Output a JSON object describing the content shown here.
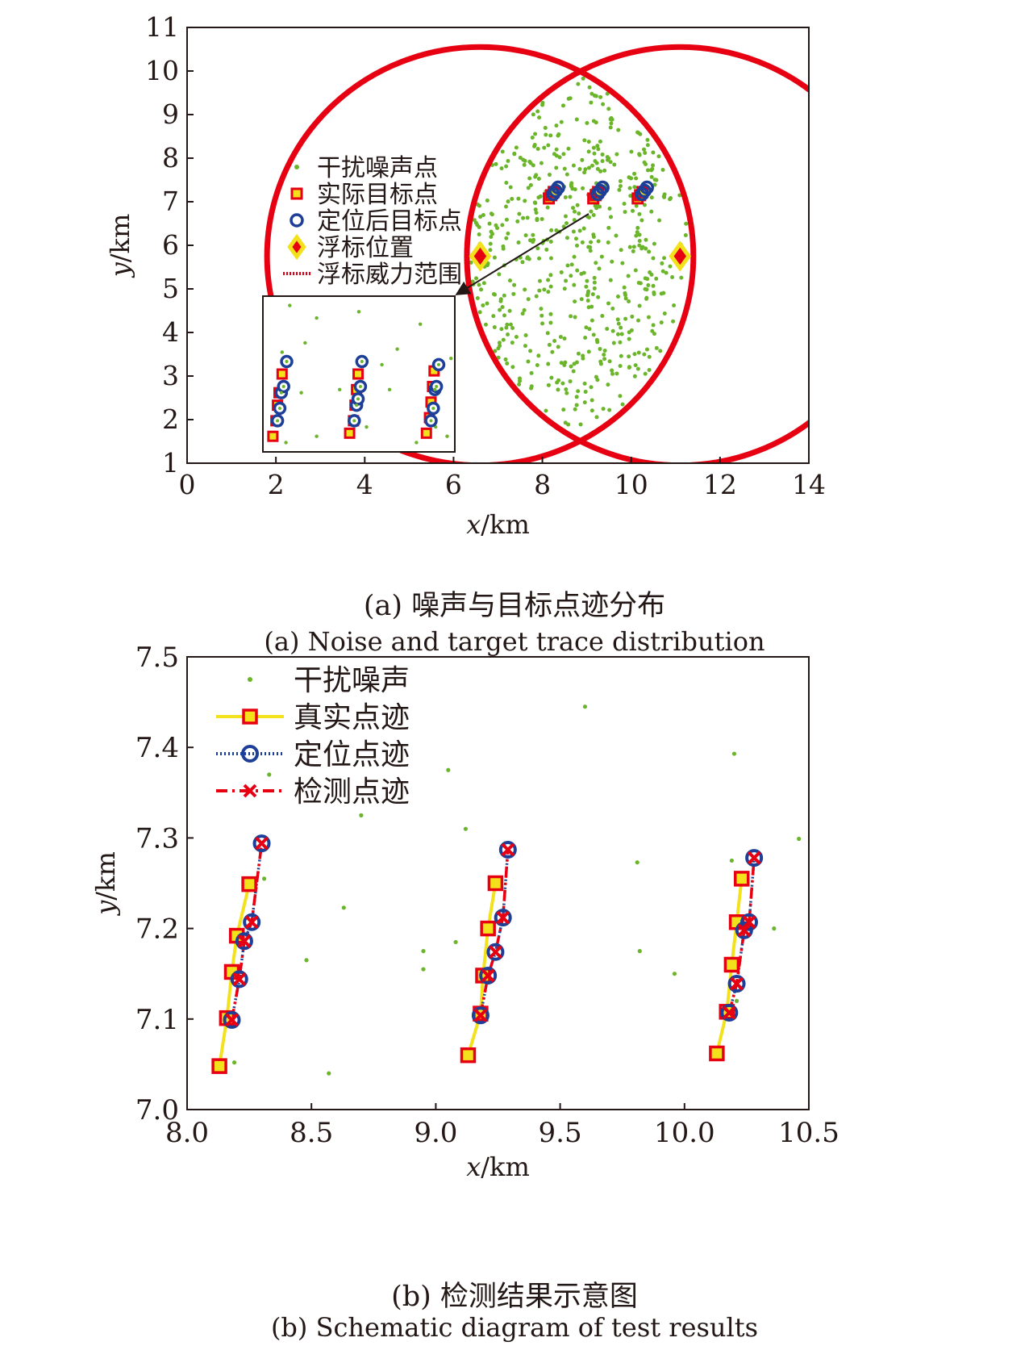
{
  "chart_data": [
    {
      "type": "scatter",
      "xlabel": "x/km",
      "ylabel": "y/km",
      "xlim": [
        0,
        14
      ],
      "ylim": [
        1,
        11
      ],
      "xticks": [
        "0",
        "2",
        "4",
        "6",
        "8",
        "10",
        "12",
        "14"
      ],
      "yticks": [
        "1",
        "2",
        "3",
        "4",
        "5",
        "6",
        "7",
        "8",
        "9",
        "10",
        "11"
      ],
      "caption_zh": "(a) 噪声与目标点迹分布",
      "caption_en": "(a) Noise and target trace distribution",
      "legend": [
        "干扰噪声点",
        "实际目标点",
        "定位后目标点",
        "浮标位置",
        "浮标威力范围"
      ],
      "buoys": [
        [
          6.6,
          5.75
        ],
        [
          11.1,
          5.75
        ]
      ],
      "buoy_range_km": 4.8,
      "noise_density": "dense green dots inside the overlapping lens of the two buoy range circles",
      "targets_actual": [
        [
          8.2,
          7.15
        ],
        [
          9.2,
          7.15
        ],
        [
          10.2,
          7.15
        ]
      ],
      "targets_located": [
        [
          8.3,
          7.25
        ],
        [
          9.3,
          7.25
        ],
        [
          10.3,
          7.25
        ]
      ],
      "inset": {
        "x_range": [
          8.0,
          10.5
        ],
        "y_range": [
          7.0,
          7.5
        ],
        "noise": [
          [
            8.35,
            7.47
          ],
          [
            8.7,
            7.43
          ],
          [
            8.55,
            7.35
          ],
          [
            9.25,
            7.45
          ],
          [
            10.05,
            7.41
          ],
          [
            10.45,
            7.3
          ],
          [
            8.25,
            7.32
          ],
          [
            9.55,
            7.28
          ],
          [
            9.75,
            7.33
          ],
          [
            10.3,
            7.22
          ],
          [
            8.5,
            7.19
          ],
          [
            9.0,
            7.2
          ],
          [
            9.65,
            7.2
          ],
          [
            10.25,
            7.08
          ],
          [
            8.7,
            7.05
          ],
          [
            8.3,
            7.03
          ],
          [
            9.35,
            7.08
          ],
          [
            10.0,
            7.03
          ],
          [
            10.4,
            7.05
          ]
        ],
        "actual": [
          [
            8.13,
            7.05
          ],
          [
            8.17,
            7.1
          ],
          [
            8.19,
            7.15
          ],
          [
            8.21,
            7.19
          ],
          [
            8.25,
            7.25
          ],
          [
            9.13,
            7.06
          ],
          [
            9.18,
            7.1
          ],
          [
            9.2,
            7.15
          ],
          [
            9.22,
            7.2
          ],
          [
            9.24,
            7.25
          ],
          [
            10.13,
            7.06
          ],
          [
            10.17,
            7.11
          ],
          [
            10.19,
            7.16
          ],
          [
            10.21,
            7.21
          ],
          [
            10.23,
            7.26
          ]
        ],
        "located": [
          [
            8.19,
            7.1
          ],
          [
            8.22,
            7.14
          ],
          [
            8.24,
            7.19
          ],
          [
            8.27,
            7.21
          ],
          [
            8.31,
            7.29
          ],
          [
            9.19,
            7.1
          ],
          [
            9.22,
            7.15
          ],
          [
            9.24,
            7.17
          ],
          [
            9.27,
            7.21
          ],
          [
            9.29,
            7.29
          ],
          [
            10.19,
            7.1
          ],
          [
            10.22,
            7.14
          ],
          [
            10.24,
            7.2
          ],
          [
            10.26,
            7.21
          ],
          [
            10.29,
            7.28
          ]
        ]
      }
    },
    {
      "type": "line",
      "xlabel": "x/km",
      "ylabel": "y/km",
      "xlim": [
        8.0,
        10.5
      ],
      "ylim": [
        7.0,
        7.5
      ],
      "xticks": [
        "8.0",
        "8.5",
        "9.0",
        "9.5",
        "10.0",
        "10.5"
      ],
      "yticks": [
        "7.0",
        "7.1",
        "7.2",
        "7.3",
        "7.4",
        "7.5"
      ],
      "caption_zh": "(b) 检测结果示意图",
      "caption_en": "(b) Schematic diagram of test results",
      "noise_name": "干扰噪声",
      "noise": [
        [
          8.33,
          7.37
        ],
        [
          8.7,
          7.325
        ],
        [
          9.6,
          7.445
        ],
        [
          10.2,
          7.393
        ],
        [
          9.12,
          7.31
        ],
        [
          9.05,
          7.375
        ],
        [
          8.63,
          7.223
        ],
        [
          10.46,
          7.299
        ],
        [
          9.81,
          7.273
        ],
        [
          8.95,
          7.175
        ],
        [
          9.08,
          7.185
        ],
        [
          8.95,
          7.155
        ],
        [
          9.82,
          7.175
        ],
        [
          10.36,
          7.2
        ],
        [
          8.48,
          7.165
        ],
        [
          9.96,
          7.15
        ],
        [
          8.19,
          7.052
        ],
        [
          8.57,
          7.04
        ],
        [
          10.19,
          7.275
        ],
        [
          8.31,
          7.255
        ],
        [
          10.21,
          7.12
        ]
      ],
      "series": [
        {
          "name": "真实点迹",
          "color": "#f3e21b",
          "marker": "square",
          "marker_fill": "#f3e21b",
          "marker_edge": "#e60012",
          "dash": "solid",
          "tracks": [
            [
              [
                8.13,
                7.048
              ],
              [
                8.16,
                7.101
              ],
              [
                8.18,
                7.152
              ],
              [
                8.2,
                7.192
              ],
              [
                8.25,
                7.249
              ]
            ],
            [
              [
                9.13,
                7.06
              ],
              [
                9.18,
                7.106
              ],
              [
                9.19,
                7.148
              ],
              [
                9.21,
                7.2
              ],
              [
                9.24,
                7.25
              ]
            ],
            [
              [
                10.13,
                7.062
              ],
              [
                10.17,
                7.108
              ],
              [
                10.19,
                7.16
              ],
              [
                10.21,
                7.207
              ],
              [
                10.23,
                7.255
              ]
            ]
          ]
        },
        {
          "name": "定位点迹",
          "color": "#1d3f97",
          "marker": "circle",
          "dash": "dotted",
          "tracks": [
            [
              [
                8.18,
                7.099
              ],
              [
                8.21,
                7.144
              ],
              [
                8.23,
                7.186
              ],
              [
                8.26,
                7.207
              ],
              [
                8.3,
                7.294
              ]
            ],
            [
              [
                9.18,
                7.104
              ],
              [
                9.21,
                7.148
              ],
              [
                9.24,
                7.174
              ],
              [
                9.27,
                7.212
              ],
              [
                9.29,
                7.287
              ]
            ],
            [
              [
                10.18,
                7.107
              ],
              [
                10.21,
                7.139
              ],
              [
                10.24,
                7.198
              ],
              [
                10.26,
                7.207
              ],
              [
                10.28,
                7.278
              ]
            ]
          ]
        },
        {
          "name": "检测点迹",
          "color": "#e60012",
          "marker": "x",
          "dash": "dashed",
          "tracks": [
            [
              [
                8.18,
                7.099
              ],
              [
                8.21,
                7.144
              ],
              [
                8.23,
                7.186
              ],
              [
                8.26,
                7.207
              ],
              [
                8.3,
                7.294
              ]
            ],
            [
              [
                9.18,
                7.104
              ],
              [
                9.21,
                7.148
              ],
              [
                9.24,
                7.174
              ],
              [
                9.27,
                7.212
              ],
              [
                9.29,
                7.287
              ]
            ],
            [
              [
                10.18,
                7.107
              ],
              [
                10.21,
                7.139
              ],
              [
                10.24,
                7.198
              ],
              [
                10.26,
                7.207
              ],
              [
                10.28,
                7.278
              ]
            ]
          ]
        }
      ]
    }
  ]
}
